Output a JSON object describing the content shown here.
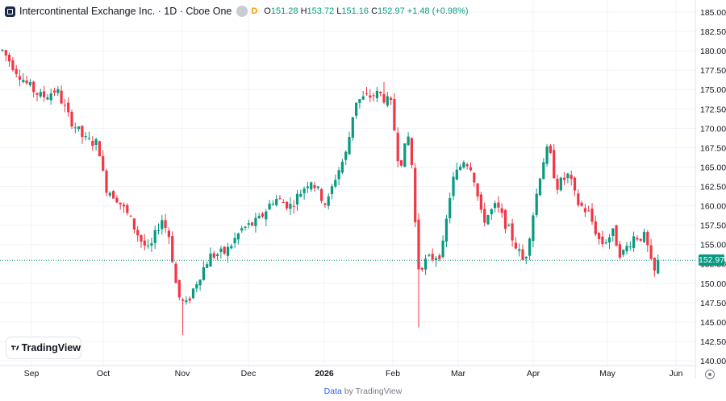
{
  "header": {
    "title": "Intercontinental Exchange Inc. · 1D · Cboe One",
    "delay_badge": "D",
    "open_label": "O",
    "open_value": "151.28",
    "high_label": "H",
    "high_value": "153.72",
    "low_label": "L",
    "low_value": "151.16",
    "close_label": "C",
    "close_value": "152.97",
    "change": "+1.48 (+0.98%)"
  },
  "logo_text": "TradingView",
  "credit": {
    "link": "Data",
    "rest": " by TradingView"
  },
  "colors": {
    "up": "#089981",
    "down": "#f23645",
    "grid": "#f0f3fa",
    "axis_text": "#131722"
  },
  "icons": [
    "symbol-icon",
    "tradingview-logo-icon",
    "settings-icon"
  ],
  "chart_data": {
    "type": "candlestick",
    "last_price": "152.97",
    "y_axis": {
      "range": [
        140,
        185
      ],
      "ticks": [
        "140.00",
        "142.50",
        "145.00",
        "147.50",
        "150.00",
        "152.50",
        "155.00",
        "157.50",
        "160.00",
        "162.50",
        "165.00",
        "167.50",
        "170.00",
        "172.50",
        "175.00",
        "177.50",
        "180.00",
        "182.50",
        "185.00"
      ]
    },
    "x_axis": {
      "labels": [
        "Sep",
        "Oct",
        "Nov",
        "Dec",
        "2026",
        "Feb",
        "Mar",
        "Apr",
        "May",
        "Jun"
      ]
    },
    "close_path": [
      {
        "x": 0,
        "y": 180.5
      },
      {
        "x": 20,
        "y": 177.5
      },
      {
        "x": 35,
        "y": 175.5
      },
      {
        "x": 52,
        "y": 174.0
      },
      {
        "x": 70,
        "y": 175.0
      },
      {
        "x": 85,
        "y": 171.5
      },
      {
        "x": 105,
        "y": 168.5
      },
      {
        "x": 122,
        "y": 168.0
      },
      {
        "x": 130,
        "y": 162.5
      },
      {
        "x": 145,
        "y": 161.0
      },
      {
        "x": 160,
        "y": 158.5
      },
      {
        "x": 175,
        "y": 155.5
      },
      {
        "x": 185,
        "y": 154.0
      },
      {
        "x": 200,
        "y": 158.5
      },
      {
        "x": 210,
        "y": 156.0
      },
      {
        "x": 220,
        "y": 148.5
      },
      {
        "x": 230,
        "y": 147.0
      },
      {
        "x": 245,
        "y": 150.5
      },
      {
        "x": 260,
        "y": 153.5
      },
      {
        "x": 280,
        "y": 154.0
      },
      {
        "x": 300,
        "y": 157.0
      },
      {
        "x": 320,
        "y": 158.0
      },
      {
        "x": 340,
        "y": 161.0
      },
      {
        "x": 360,
        "y": 160.0
      },
      {
        "x": 385,
        "y": 163.5
      },
      {
        "x": 405,
        "y": 160.0
      },
      {
        "x": 415,
        "y": 163.5
      },
      {
        "x": 430,
        "y": 167.0
      },
      {
        "x": 440,
        "y": 173.5
      },
      {
        "x": 455,
        "y": 174.0
      },
      {
        "x": 470,
        "y": 174.5
      },
      {
        "x": 485,
        "y": 173.0
      },
      {
        "x": 495,
        "y": 165.0
      },
      {
        "x": 508,
        "y": 169.5
      },
      {
        "x": 518,
        "y": 152.0
      },
      {
        "x": 530,
        "y": 153.0
      },
      {
        "x": 548,
        "y": 154.0
      },
      {
        "x": 560,
        "y": 163.0
      },
      {
        "x": 575,
        "y": 166.0
      },
      {
        "x": 585,
        "y": 165.0
      },
      {
        "x": 598,
        "y": 158.0
      },
      {
        "x": 615,
        "y": 160.0
      },
      {
        "x": 630,
        "y": 157.0
      },
      {
        "x": 650,
        "y": 152.5
      },
      {
        "x": 660,
        "y": 158.5
      },
      {
        "x": 672,
        "y": 165.5
      },
      {
        "x": 680,
        "y": 167.5
      },
      {
        "x": 690,
        "y": 162.5
      },
      {
        "x": 705,
        "y": 164.0
      },
      {
        "x": 715,
        "y": 160.5
      },
      {
        "x": 730,
        "y": 159.0
      },
      {
        "x": 745,
        "y": 155.0
      },
      {
        "x": 760,
        "y": 156.5
      },
      {
        "x": 770,
        "y": 153.5
      },
      {
        "x": 785,
        "y": 156.0
      },
      {
        "x": 800,
        "y": 156.0
      },
      {
        "x": 810,
        "y": 151.0
      },
      {
        "x": 817,
        "y": 152.97
      }
    ],
    "notable_extremes": [
      {
        "x": 228,
        "y": 143.3
      },
      {
        "x": 521,
        "y": 144.3
      },
      {
        "x": 478,
        "y": 176.0
      }
    ]
  }
}
